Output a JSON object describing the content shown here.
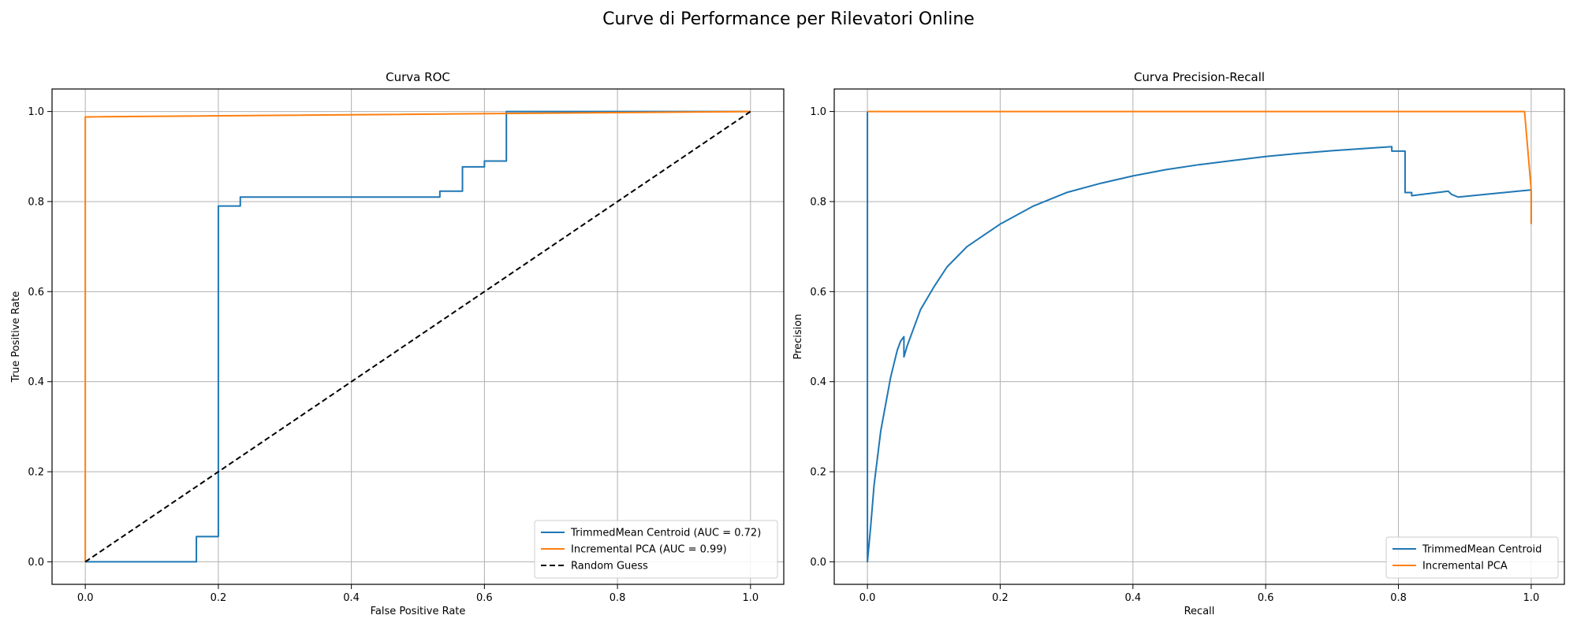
{
  "figure": {
    "title": "Curve di Performance per Rilevatori Online"
  },
  "chart_data": [
    {
      "type": "line",
      "title": "Curva ROC",
      "xlabel": "False Positive Rate",
      "ylabel": "True Positive Rate",
      "xlim": [
        -0.05,
        1.05
      ],
      "ylim": [
        -0.05,
        1.05
      ],
      "xticks": [
        "0.0",
        "0.2",
        "0.4",
        "0.6",
        "0.8",
        "1.0"
      ],
      "yticks": [
        "0.0",
        "0.2",
        "0.4",
        "0.6",
        "0.8",
        "1.0"
      ],
      "grid": true,
      "legend_position": "lower-right",
      "series": [
        {
          "name": "TrimmedMean Centroid (AUC = 0.72)",
          "color": "#1f77b4",
          "style": "solid",
          "x": [
            0,
            0.167,
            0.167,
            0.2,
            0.2,
            0.233,
            0.233,
            0.533,
            0.533,
            0.567,
            0.567,
            0.6,
            0.6,
            0.633,
            0.633,
            1.0
          ],
          "y": [
            0,
            0,
            0.056,
            0.056,
            0.79,
            0.79,
            0.81,
            0.81,
            0.823,
            0.823,
            0.877,
            0.877,
            0.89,
            0.89,
            1.0,
            1.0
          ]
        },
        {
          "name": "Incremental PCA (AUC = 0.99)",
          "color": "#ff7f0e",
          "style": "solid",
          "x": [
            0,
            0,
            1.0
          ],
          "y": [
            0,
            0.988,
            1.0
          ]
        },
        {
          "name": "Random Guess",
          "color": "#000000",
          "style": "dashed",
          "x": [
            0,
            1
          ],
          "y": [
            0,
            1
          ]
        }
      ]
    },
    {
      "type": "line",
      "title": "Curva Precision-Recall",
      "xlabel": "Recall",
      "ylabel": "Precision",
      "xlim": [
        -0.05,
        1.05
      ],
      "ylim": [
        -0.05,
        1.05
      ],
      "xticks": [
        "0.0",
        "0.2",
        "0.4",
        "0.6",
        "0.8",
        "1.0"
      ],
      "yticks": [
        "0.0",
        "0.2",
        "0.4",
        "0.6",
        "0.8",
        "1.0"
      ],
      "grid": true,
      "legend_position": "lower-right",
      "series": [
        {
          "name": "TrimmedMean Centroid",
          "color": "#1f77b4",
          "style": "solid",
          "x": [
            0,
            0,
            0,
            0.005,
            0.01,
            0.015,
            0.02,
            0.025,
            0.03,
            0.035,
            0.04,
            0.045,
            0.05,
            0.055,
            0.055,
            0.06,
            0.07,
            0.08,
            0.1,
            0.12,
            0.15,
            0.2,
            0.25,
            0.3,
            0.35,
            0.4,
            0.45,
            0.5,
            0.55,
            0.6,
            0.65,
            0.7,
            0.75,
            0.79,
            0.79,
            0.81,
            0.81,
            0.82,
            0.82,
            0.875,
            0.88,
            0.89,
            1.0,
            1.0
          ],
          "y": [
            1.0,
            0,
            0.0,
            0.08,
            0.17,
            0.23,
            0.29,
            0.33,
            0.37,
            0.41,
            0.44,
            0.47,
            0.49,
            0.5,
            0.455,
            0.48,
            0.52,
            0.56,
            0.61,
            0.655,
            0.7,
            0.75,
            0.79,
            0.82,
            0.84,
            0.857,
            0.871,
            0.882,
            0.891,
            0.9,
            0.907,
            0.913,
            0.918,
            0.922,
            0.912,
            0.912,
            0.82,
            0.82,
            0.813,
            0.823,
            0.816,
            0.81,
            0.826,
            0.75
          ]
        },
        {
          "name": "Incremental PCA",
          "color": "#ff7f0e",
          "style": "solid",
          "x": [
            0,
            0.99,
            1.0,
            1.0
          ],
          "y": [
            1.0,
            1.0,
            0.826,
            0.75
          ]
        }
      ]
    }
  ]
}
